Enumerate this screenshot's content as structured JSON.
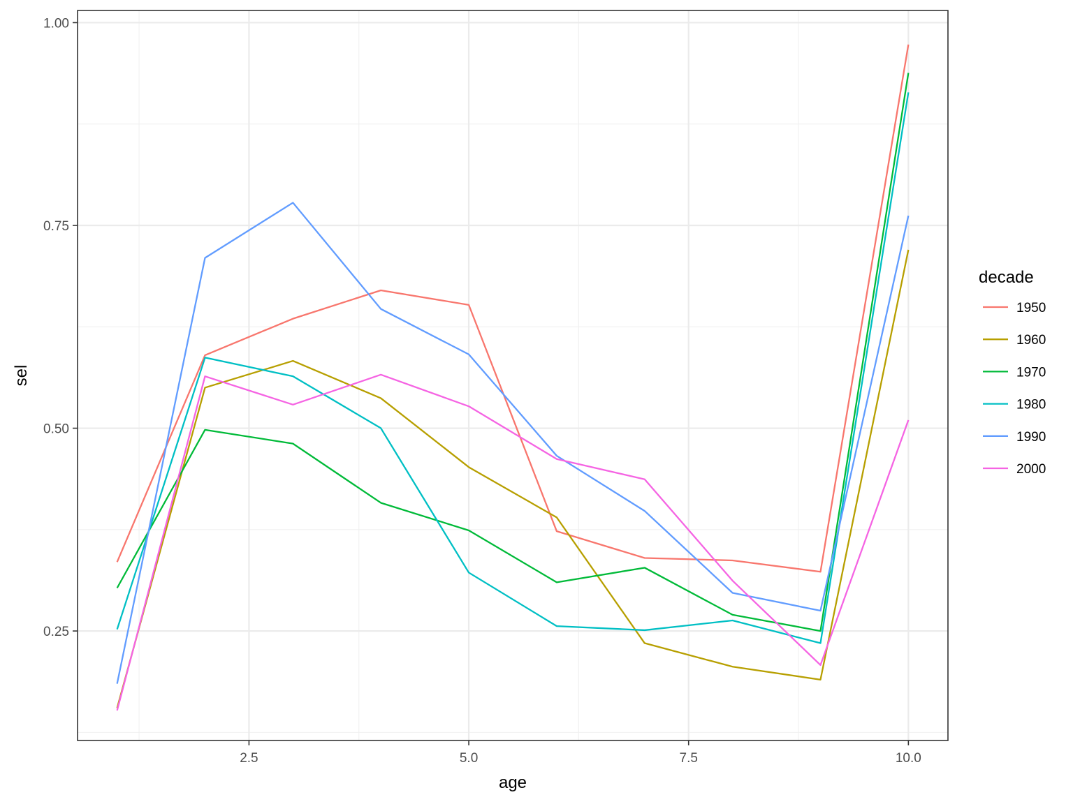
{
  "chart_data": {
    "type": "line",
    "title": "",
    "xlabel": "age",
    "ylabel": "sel",
    "xlim": [
      0.55,
      10.45
    ],
    "ylim": [
      0.115,
      1.015
    ],
    "x_ticks": [
      2.5,
      5.0,
      7.5,
      10.0
    ],
    "x_tick_labels": [
      "2.5",
      "5.0",
      "7.5",
      "10.0"
    ],
    "y_ticks": [
      0.25,
      0.5,
      0.75,
      1.0
    ],
    "y_tick_labels": [
      "0.25",
      "0.50",
      "0.75",
      "1.00"
    ],
    "grid": true,
    "legend": {
      "title": "decade",
      "placement": "right"
    },
    "x": [
      1,
      2,
      3,
      4,
      5,
      6,
      7,
      8,
      9,
      10
    ],
    "series": [
      {
        "name": "1950",
        "color": "#F8766D",
        "values": [
          0.335,
          0.59,
          0.635,
          0.67,
          0.652,
          0.373,
          0.34,
          0.337,
          0.323,
          0.973
        ]
      },
      {
        "name": "1960",
        "color": "#B79F00",
        "values": [
          0.155,
          0.55,
          0.583,
          0.537,
          0.452,
          0.39,
          0.235,
          0.206,
          0.19,
          0.72
        ]
      },
      {
        "name": "1970",
        "color": "#00BA38",
        "values": [
          0.303,
          0.498,
          0.481,
          0.408,
          0.374,
          0.31,
          0.328,
          0.27,
          0.25,
          0.938
        ]
      },
      {
        "name": "1980",
        "color": "#00BFC4",
        "values": [
          0.252,
          0.587,
          0.564,
          0.5,
          0.322,
          0.256,
          0.251,
          0.263,
          0.235,
          0.914
        ]
      },
      {
        "name": "1990",
        "color": "#619CFF",
        "values": [
          0.185,
          0.71,
          0.778,
          0.647,
          0.591,
          0.466,
          0.398,
          0.297,
          0.275,
          0.762
        ]
      },
      {
        "name": "2000",
        "color": "#F564E3",
        "values": [
          0.152,
          0.564,
          0.529,
          0.566,
          0.527,
          0.462,
          0.437,
          0.312,
          0.208,
          0.51
        ]
      }
    ]
  }
}
